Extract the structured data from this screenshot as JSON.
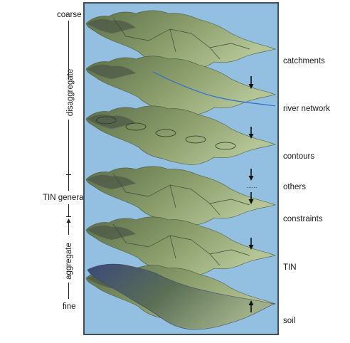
{
  "left_axis": {
    "top_label": "coarse",
    "upper_label": "disaggregate",
    "middle_label": "TIN generator",
    "lower_label": "aggregate",
    "bottom_label": "fine"
  },
  "layers": [
    {
      "label": "catchments",
      "style": "catchments"
    },
    {
      "label": "river network",
      "style": "rivers"
    },
    {
      "label": "contours",
      "style": "contours"
    },
    {
      "label": "others",
      "style": "others"
    },
    {
      "label": "constraints",
      "style": "constraints"
    },
    {
      "label": "TIN",
      "style": "tin"
    },
    {
      "label": "soil",
      "style": "soil"
    }
  ],
  "others_separator": "......",
  "arrows": [
    {
      "direction": "down",
      "between": [
        "catchments",
        "river network"
      ]
    },
    {
      "direction": "down",
      "between": [
        "river network",
        "contours"
      ]
    },
    {
      "direction": "down",
      "between": [
        "contours",
        "others"
      ]
    },
    {
      "direction": "down",
      "between": [
        "others",
        "constraints"
      ]
    },
    {
      "direction": "down",
      "between": [
        "constraints",
        "TIN"
      ]
    },
    {
      "direction": "up",
      "between": [
        "TIN",
        "soil"
      ]
    }
  ],
  "colors": {
    "background": "#93bfe0",
    "border": "#3f4f5c",
    "terrain_high": "#5d6f4b",
    "terrain_low": "#b4c596",
    "river": "#2f6fd0"
  }
}
